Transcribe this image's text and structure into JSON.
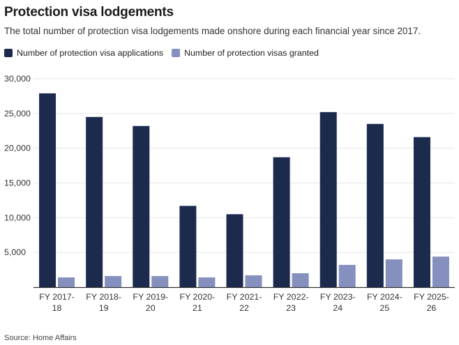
{
  "title": "Protection visa lodgements",
  "subtitle": "The total number of protection visa lodgements made onshore during each financial year since 2017.",
  "source": "Source: Home Affairs",
  "colors": {
    "applications": "#1c2a4e",
    "granted": "#8590be",
    "grid": "#e6e6e6",
    "axis": "#333333"
  },
  "chart_data": {
    "type": "bar",
    "title": "Protection visa lodgements",
    "xlabel": "",
    "ylabel": "",
    "ylim": [
      0,
      30000
    ],
    "yticks": [
      "30,000",
      "25,000",
      "20,000",
      "15,000",
      "10,000",
      "5,000"
    ],
    "ytick_values": [
      30000,
      25000,
      20000,
      15000,
      10000,
      5000
    ],
    "grid": true,
    "legend_position": "top-left",
    "categories": [
      [
        "FY 2017-",
        "18"
      ],
      [
        "FY 2018-",
        "19"
      ],
      [
        "FY 2019-",
        "20"
      ],
      [
        "FY 2020-",
        "21"
      ],
      [
        "FY 2021-",
        "22"
      ],
      [
        "FY 2022-",
        "23"
      ],
      [
        "FY 2023-",
        "24"
      ],
      [
        "FY 2024-",
        "25"
      ],
      [
        "FY 2025-",
        "26"
      ]
    ],
    "series": [
      {
        "name": "Number of protection visa applications",
        "values": [
          27900,
          24500,
          23200,
          11700,
          10500,
          18700,
          25200,
          23500,
          21600
        ]
      },
      {
        "name": "Number of protection visas granted",
        "values": [
          1400,
          1600,
          1600,
          1400,
          1700,
          2000,
          3200,
          4000,
          4400
        ]
      }
    ]
  }
}
